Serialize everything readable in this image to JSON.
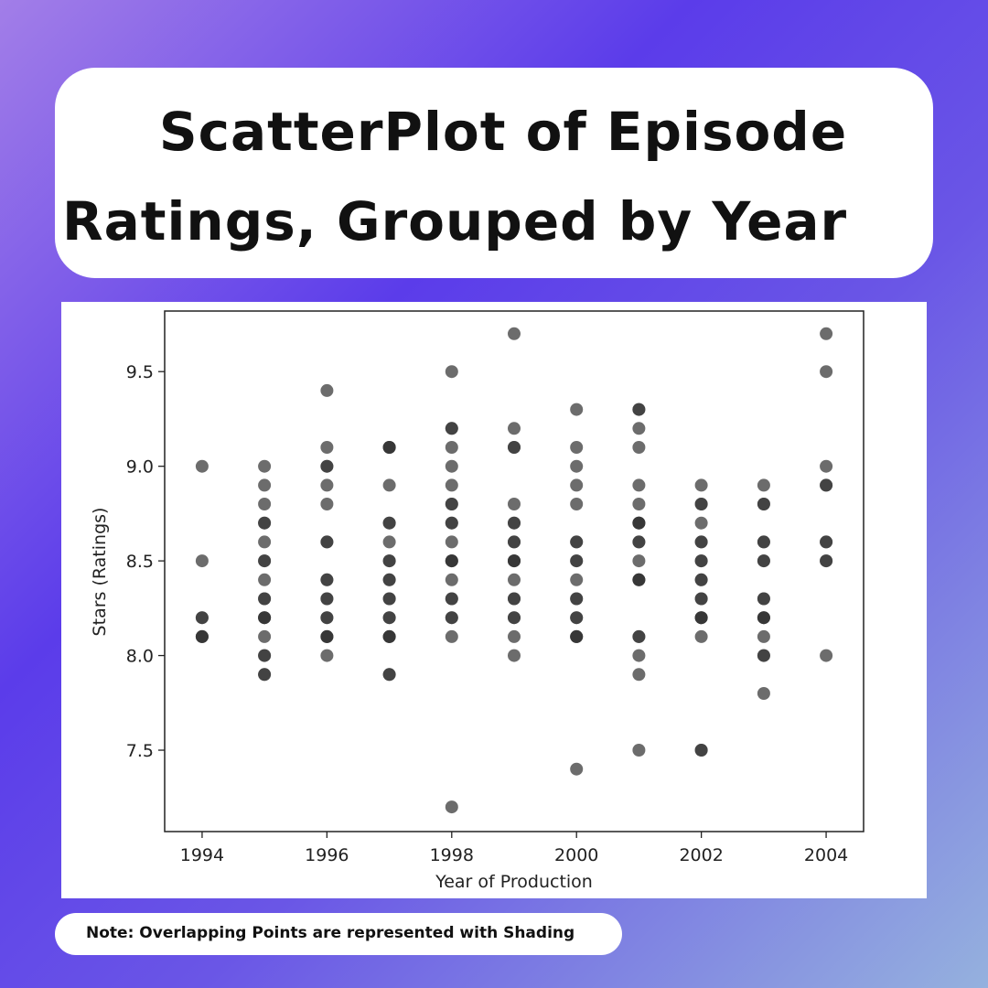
{
  "title": {
    "line1": "ScatterPlot of Episode",
    "line2": "Ratings, Grouped by Year"
  },
  "note": "Note: Overlapping Points are represented with Shading",
  "colors": {
    "point": "#333333",
    "axis": "#222222",
    "panel": "#ffffff"
  },
  "chart_data": {
    "type": "scatter",
    "title": "ScatterPlot of Episode Ratings, Grouped by Year",
    "xlabel": "Year of Production",
    "ylabel": "Stars (Ratings)",
    "xlim": [
      1993.4,
      2004.6
    ],
    "ylim": [
      7.07,
      9.82
    ],
    "xticks": [
      1994,
      1996,
      1998,
      2000,
      2002,
      2004
    ],
    "yticks": [
      7.5,
      8.0,
      8.5,
      9.0,
      9.5
    ],
    "xtick_labels": [
      "1994",
      "1996",
      "1998",
      "2000",
      "2002",
      "2004"
    ],
    "ytick_labels": [
      "7.5",
      "8.0",
      "8.5",
      "9.0",
      "9.5"
    ],
    "grid": false,
    "legend": "none",
    "groups": [
      {
        "x": 1994,
        "points": [
          [
            9.0,
            1
          ],
          [
            8.5,
            1
          ],
          [
            8.2,
            2
          ],
          [
            8.1,
            3
          ]
        ]
      },
      {
        "x": 1995,
        "points": [
          [
            9.0,
            1
          ],
          [
            8.9,
            1
          ],
          [
            8.8,
            1
          ],
          [
            8.7,
            2
          ],
          [
            8.6,
            1
          ],
          [
            8.5,
            2
          ],
          [
            8.4,
            1
          ],
          [
            8.3,
            2
          ],
          [
            8.2,
            3
          ],
          [
            8.1,
            1
          ],
          [
            8.0,
            2
          ],
          [
            7.9,
            2
          ]
        ]
      },
      {
        "x": 1996,
        "points": [
          [
            9.4,
            1
          ],
          [
            9.1,
            1
          ],
          [
            9.0,
            2
          ],
          [
            8.9,
            1
          ],
          [
            8.8,
            1
          ],
          [
            8.6,
            2
          ],
          [
            8.4,
            2
          ],
          [
            8.3,
            2
          ],
          [
            8.2,
            2
          ],
          [
            8.1,
            3
          ],
          [
            8.0,
            1
          ]
        ]
      },
      {
        "x": 1997,
        "points": [
          [
            9.1,
            3
          ],
          [
            8.9,
            1
          ],
          [
            8.7,
            2
          ],
          [
            8.6,
            1
          ],
          [
            8.5,
            2
          ],
          [
            8.4,
            2
          ],
          [
            8.3,
            2
          ],
          [
            8.2,
            2
          ],
          [
            8.1,
            3
          ],
          [
            7.9,
            2
          ]
        ]
      },
      {
        "x": 1998,
        "points": [
          [
            9.5,
            1
          ],
          [
            9.2,
            2
          ],
          [
            9.1,
            1
          ],
          [
            9.0,
            1
          ],
          [
            8.9,
            1
          ],
          [
            8.8,
            2
          ],
          [
            8.7,
            2
          ],
          [
            8.6,
            1
          ],
          [
            8.5,
            3
          ],
          [
            8.4,
            1
          ],
          [
            8.3,
            2
          ],
          [
            8.2,
            2
          ],
          [
            8.1,
            1
          ],
          [
            7.2,
            1
          ]
        ]
      },
      {
        "x": 1999,
        "points": [
          [
            9.7,
            1
          ],
          [
            9.2,
            1
          ],
          [
            9.1,
            2
          ],
          [
            8.8,
            1
          ],
          [
            8.7,
            2
          ],
          [
            8.6,
            2
          ],
          [
            8.5,
            3
          ],
          [
            8.4,
            1
          ],
          [
            8.3,
            2
          ],
          [
            8.2,
            2
          ],
          [
            8.1,
            1
          ],
          [
            8.0,
            1
          ]
        ]
      },
      {
        "x": 2000,
        "points": [
          [
            9.3,
            1
          ],
          [
            9.1,
            1
          ],
          [
            9.0,
            1
          ],
          [
            8.9,
            1
          ],
          [
            8.8,
            1
          ],
          [
            8.6,
            2
          ],
          [
            8.5,
            2
          ],
          [
            8.4,
            1
          ],
          [
            8.3,
            2
          ],
          [
            8.2,
            2
          ],
          [
            8.1,
            3
          ],
          [
            7.4,
            1
          ]
        ]
      },
      {
        "x": 2001,
        "points": [
          [
            9.3,
            2
          ],
          [
            9.2,
            1
          ],
          [
            9.1,
            1
          ],
          [
            8.9,
            1
          ],
          [
            8.8,
            1
          ],
          [
            8.7,
            3
          ],
          [
            8.6,
            2
          ],
          [
            8.5,
            1
          ],
          [
            8.4,
            3
          ],
          [
            8.1,
            2
          ],
          [
            8.0,
            1
          ],
          [
            7.9,
            1
          ],
          [
            7.5,
            1
          ]
        ]
      },
      {
        "x": 2002,
        "points": [
          [
            8.9,
            1
          ],
          [
            8.8,
            2
          ],
          [
            8.7,
            1
          ],
          [
            8.6,
            2
          ],
          [
            8.5,
            2
          ],
          [
            8.4,
            2
          ],
          [
            8.3,
            2
          ],
          [
            8.2,
            3
          ],
          [
            8.1,
            1
          ],
          [
            7.5,
            2
          ]
        ]
      },
      {
        "x": 2003,
        "points": [
          [
            8.9,
            1
          ],
          [
            8.8,
            2
          ],
          [
            8.6,
            2
          ],
          [
            8.5,
            2
          ],
          [
            8.3,
            2
          ],
          [
            8.2,
            3
          ],
          [
            8.1,
            1
          ],
          [
            8.0,
            2
          ],
          [
            7.8,
            1
          ]
        ]
      },
      {
        "x": 2004,
        "points": [
          [
            9.7,
            1
          ],
          [
            9.5,
            1
          ],
          [
            9.0,
            1
          ],
          [
            8.9,
            2
          ],
          [
            8.6,
            2
          ],
          [
            8.5,
            2
          ],
          [
            8.0,
            1
          ]
        ]
      }
    ]
  }
}
